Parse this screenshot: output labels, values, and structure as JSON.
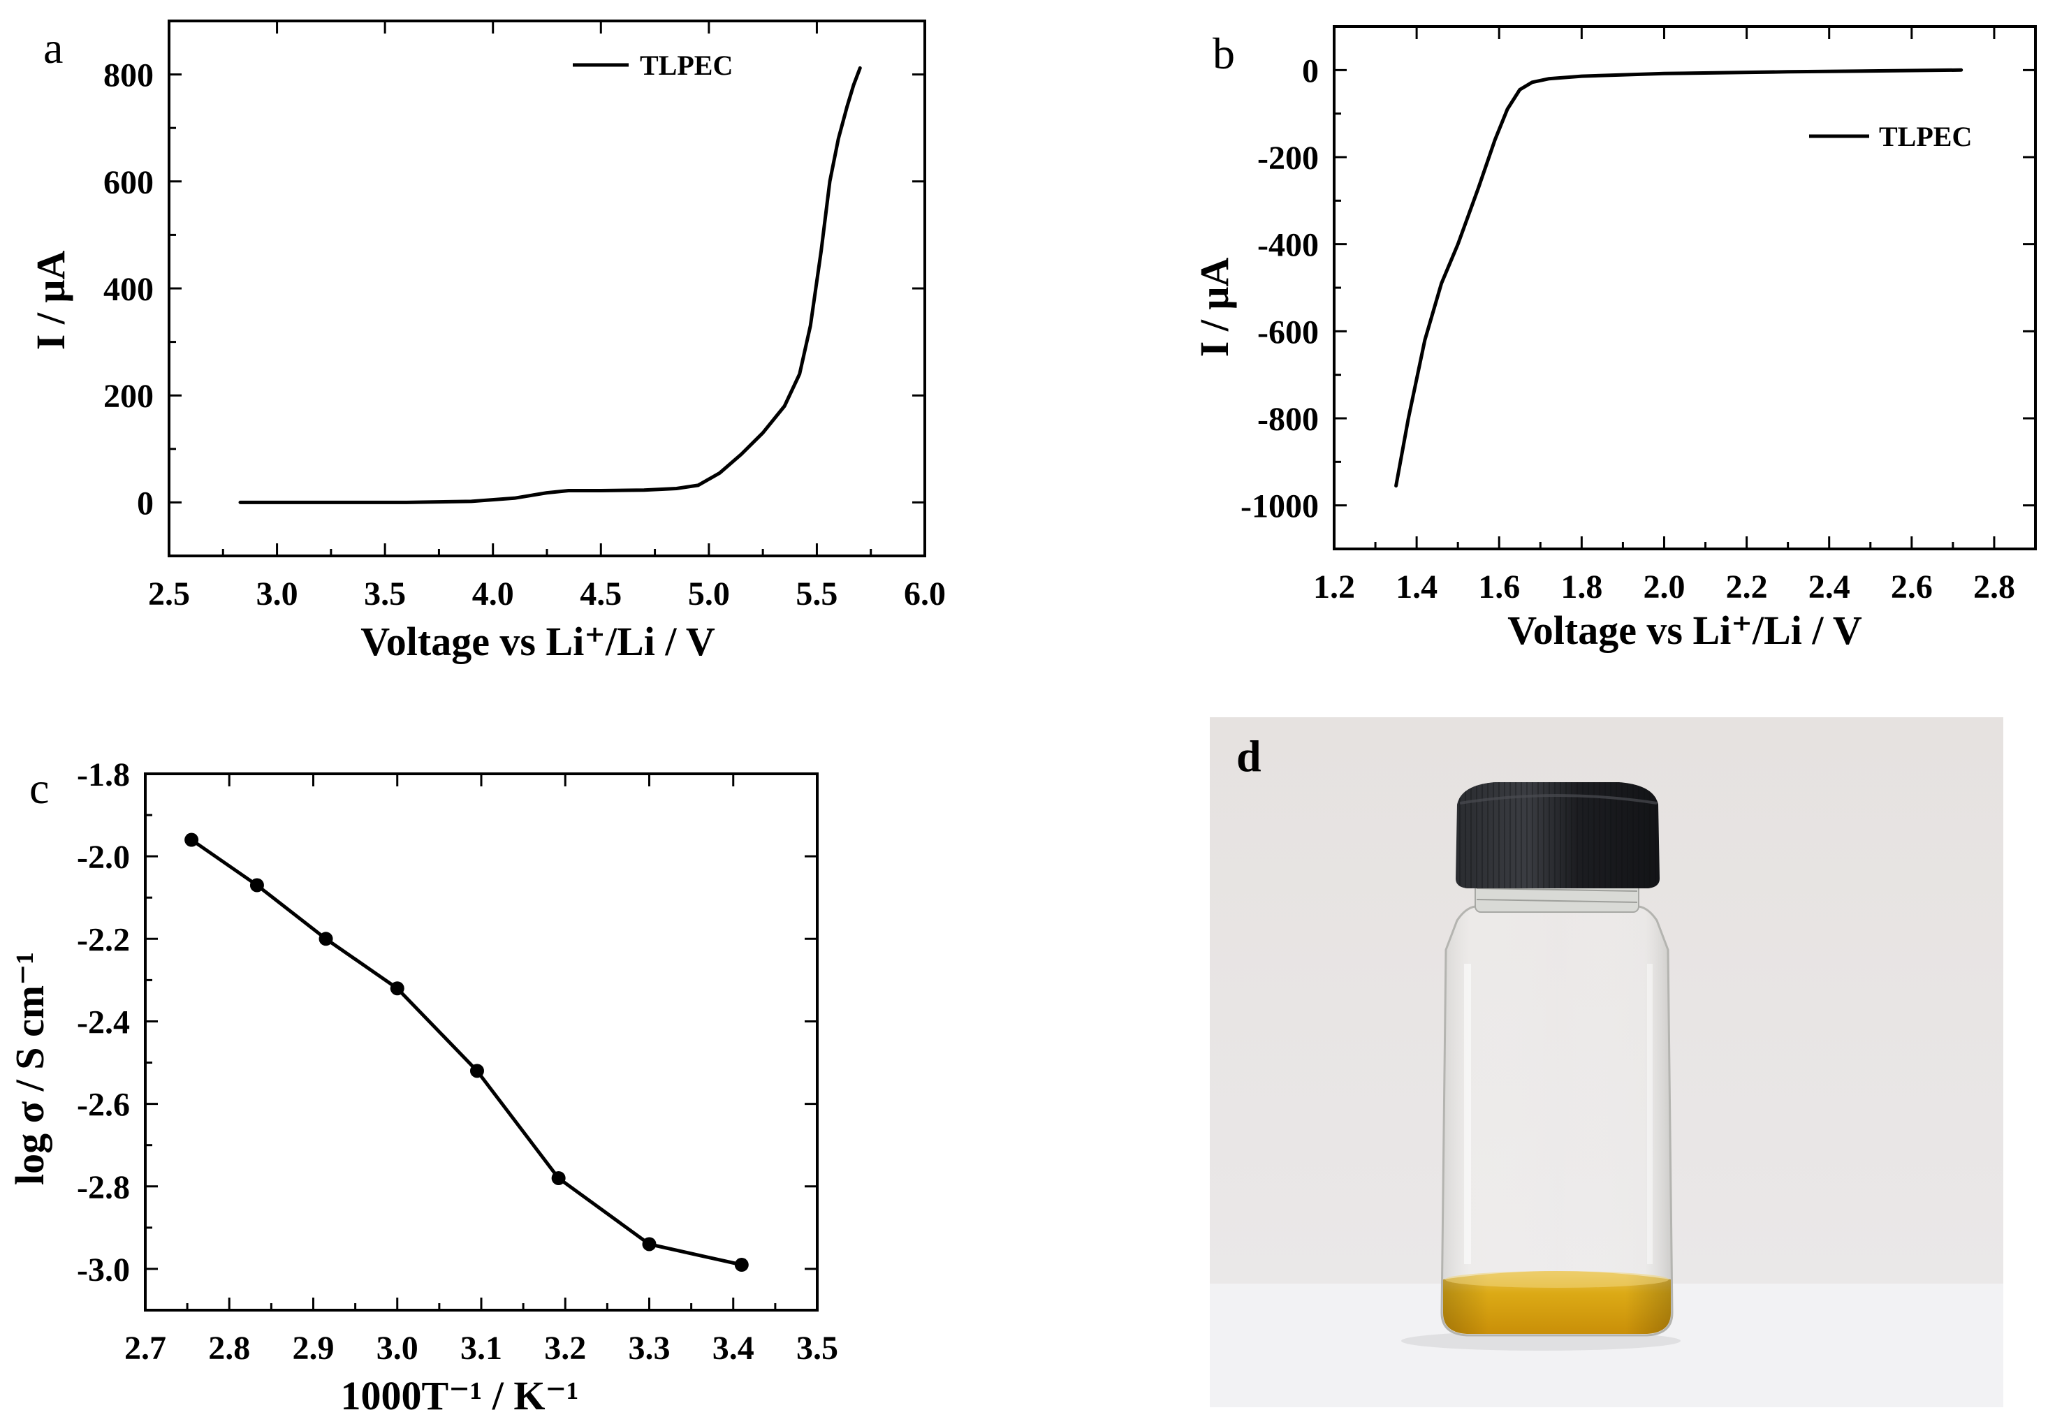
{
  "chart_data": [
    {
      "panel_label": "a",
      "type": "line",
      "title": "",
      "xlabel": "Voltage vs Li⁺/Li / V",
      "ylabel": "I / μA",
      "xlim": [
        2.5,
        6.0
      ],
      "ylim": [
        -100,
        900
      ],
      "xticks": [
        2.5,
        3.0,
        3.5,
        4.0,
        4.5,
        5.0,
        5.5,
        6.0
      ],
      "xtick_labels": [
        "2.5",
        "3.0",
        "3.5",
        "4.0",
        "4.5",
        "5.0",
        "5.5",
        "6.0"
      ],
      "yticks": [
        0,
        200,
        400,
        600,
        800
      ],
      "ytick_labels": [
        "0",
        "200",
        "400",
        "600",
        "800"
      ],
      "legend": "top-right",
      "series": [
        {
          "name": "TLPEC",
          "x": [
            2.83,
            3.2,
            3.6,
            3.9,
            4.1,
            4.25,
            4.35,
            4.5,
            4.7,
            4.85,
            4.95,
            5.05,
            5.15,
            5.25,
            5.35,
            5.42,
            5.47,
            5.52,
            5.56,
            5.6,
            5.64,
            5.67,
            5.7
          ],
          "y": [
            0,
            0,
            0,
            2,
            8,
            18,
            22,
            22,
            23,
            26,
            32,
            55,
            90,
            130,
            180,
            240,
            330,
            470,
            600,
            680,
            740,
            780,
            812
          ]
        }
      ]
    },
    {
      "panel_label": "b",
      "type": "line",
      "title": "",
      "xlabel": "Voltage vs Li⁺/Li / V",
      "ylabel": "I / μA",
      "xlim": [
        1.2,
        2.9
      ],
      "ylim": [
        -1100,
        100
      ],
      "xticks": [
        1.2,
        1.4,
        1.6,
        1.8,
        2.0,
        2.2,
        2.4,
        2.6,
        2.8
      ],
      "xtick_labels": [
        "1.2",
        "1.4",
        "1.6",
        "1.8",
        "2.0",
        "2.2",
        "2.4",
        "2.6",
        "2.8"
      ],
      "yticks": [
        0,
        -200,
        -400,
        -600,
        -800,
        -1000
      ],
      "ytick_labels": [
        "0",
        "-200",
        "-400",
        "-600",
        "-800",
        "-1000"
      ],
      "legend": "top-right",
      "series": [
        {
          "name": "TLPEC",
          "x": [
            1.35,
            1.38,
            1.42,
            1.46,
            1.5,
            1.55,
            1.59,
            1.62,
            1.65,
            1.68,
            1.72,
            1.8,
            2.0,
            2.3,
            2.72
          ],
          "y": [
            -955,
            -800,
            -620,
            -490,
            -400,
            -270,
            -160,
            -90,
            -45,
            -28,
            -20,
            -14,
            -8,
            -4,
            0
          ]
        }
      ]
    },
    {
      "panel_label": "c",
      "type": "line",
      "title": "",
      "xlabel": "1000T⁻¹ / K⁻¹",
      "ylabel": "log σ / S cm⁻¹",
      "xlim": [
        2.7,
        3.5
      ],
      "ylim": [
        -3.1,
        -1.8
      ],
      "xticks": [
        2.7,
        2.8,
        2.9,
        3.0,
        3.1,
        3.2,
        3.3,
        3.4,
        3.5
      ],
      "xtick_labels": [
        "2.7",
        "2.8",
        "2.9",
        "3.0",
        "3.1",
        "3.2",
        "3.3",
        "3.4",
        "3.5"
      ],
      "yticks": [
        -1.8,
        -2.0,
        -2.2,
        -2.4,
        -2.6,
        -2.8,
        -3.0
      ],
      "ytick_labels": [
        "-1.8",
        "-2.0",
        "-2.2",
        "-2.4",
        "-2.6",
        "-2.8",
        "-3.0"
      ],
      "series": [
        {
          "name": "log sigma",
          "x": [
            2.755,
            2.833,
            2.915,
            3.0,
            3.095,
            3.192,
            3.3,
            3.41
          ],
          "y": [
            -1.96,
            -2.07,
            -2.2,
            -2.32,
            -2.52,
            -2.78,
            -2.94,
            -2.99
          ]
        }
      ]
    }
  ],
  "photo": {
    "panel_label": "d",
    "description_color_cap": "#1f2125",
    "liquid_color": "#d9a81a",
    "background_wall": "#e8e6e5",
    "background_table": "#f3f3f5"
  },
  "colors": {
    "line": "#000000",
    "frame": "#000000"
  }
}
